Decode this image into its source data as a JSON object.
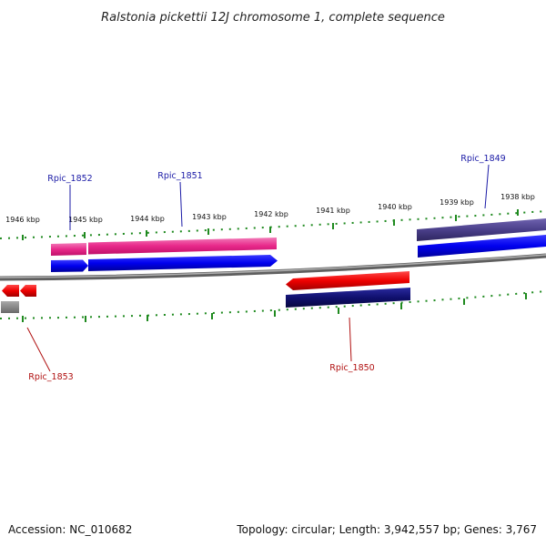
{
  "title": "Ralstonia pickettii 12J chromosome 1, complete sequence",
  "scale_labels": [
    "1946 kbp",
    "1945 kbp",
    "1944 kbp",
    "1943 kbp",
    "1942 kbp",
    "1941 kbp",
    "1940 kbp",
    "1939 kbp",
    "1938 kbp"
  ],
  "genes": [
    {
      "id": "Rpic_1852",
      "strand": "forward",
      "color": "#1a1aa6"
    },
    {
      "id": "Rpic_1851",
      "strand": "forward",
      "color": "#1a1aa6"
    },
    {
      "id": "Rpic_1849",
      "strand": "forward",
      "color": "#1a1aa6"
    },
    {
      "id": "Rpic_1853",
      "strand": "reverse",
      "color": "#b01010"
    },
    {
      "id": "Rpic_1850",
      "strand": "reverse",
      "color": "#b01010"
    }
  ],
  "footer": {
    "accession": "Accession: NC_010682",
    "info": "Topology: circular; Length: 3,942,557 bp; Genes: 3,767"
  },
  "colors": {
    "forward_gene": "#0000ee",
    "forward_feature": "#e8288a",
    "forward_feature_dark": "#4a3f8a",
    "reverse_gene": "#ee0000",
    "reverse_feature": "#10106e",
    "backbone": "#888888",
    "tick": "#1f8a1f"
  }
}
